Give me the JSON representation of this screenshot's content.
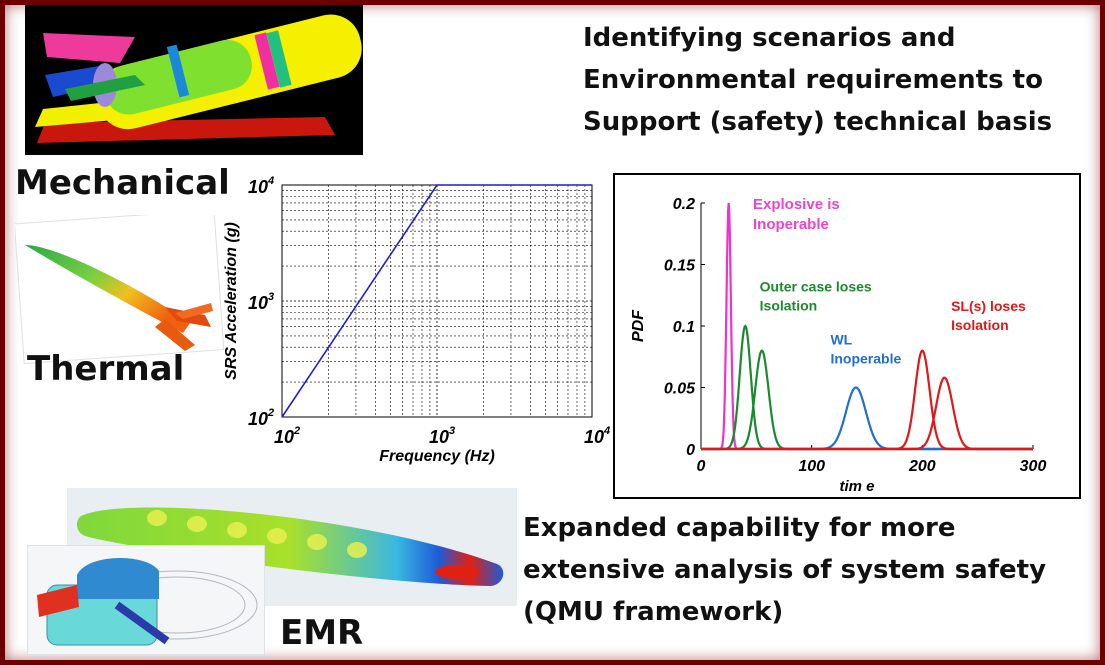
{
  "headings": {
    "top_lines": [
      "Identifying scenarios and",
      "Environmental requirements to",
      "Support (safety) technical basis"
    ],
    "bottom_lines": [
      "Expanded capability for more",
      "extensive analysis of  system safety",
      "(QMU framework)"
    ]
  },
  "labels": {
    "mechanical": "Mechanical",
    "thermal": "Thermal",
    "emr": "EMR"
  },
  "chart_data": [
    {
      "type": "line",
      "scale": "log-log",
      "xlabel": "Frequency (Hz)",
      "ylabel": "SRS Acceleration (g)",
      "xlim": [
        100,
        10000
      ],
      "ylim": [
        100,
        10000
      ],
      "grid": true,
      "xticks": [
        {
          "base": "10",
          "exp": "2",
          "value": 100
        },
        {
          "base": "10",
          "exp": "3",
          "value": 1000
        },
        {
          "base": "10",
          "exp": "4",
          "value": 10000
        }
      ],
      "yticks": [
        {
          "base": "10",
          "exp": "2",
          "value": 100
        },
        {
          "base": "10",
          "exp": "3",
          "value": 1000
        },
        {
          "base": "10",
          "exp": "4",
          "value": 10000
        }
      ],
      "series": [
        {
          "color": "#1f1fd0",
          "x": [
            100,
            1000,
            10000
          ],
          "y": [
            100,
            10000,
            10000
          ]
        }
      ]
    },
    {
      "type": "line",
      "xlabel": "tim e",
      "ylabel": "PDF",
      "xlim": [
        0,
        300
      ],
      "ylim": [
        0,
        0.2
      ],
      "xticks": [
        "0",
        "100",
        "200",
        "300"
      ],
      "yticks": [
        "0",
        "0.05",
        "0.1",
        "0.15",
        "0.2"
      ],
      "annotations": [
        {
          "lines": [
            "Explosive  is",
            "Inoperable"
          ],
          "color": "#ee44cc",
          "x": 47,
          "y": 0.195,
          "size": 15
        },
        {
          "lines": [
            "Outer case loses",
            "Isolation"
          ],
          "color": "#1b8a2e",
          "x": 53,
          "y": 0.128,
          "size": 14
        },
        {
          "lines": [
            "WL",
            "Inoperable"
          ],
          "color": "#1f6fd0",
          "x": 117,
          "y": 0.085,
          "size": 14
        },
        {
          "lines": [
            "SL(s) loses",
            "Isolation"
          ],
          "color": "#e01818",
          "x": 226,
          "y": 0.112,
          "size": 14
        }
      ],
      "series": [
        {
          "color": "#ee33cc",
          "mean": 25,
          "sd": 2,
          "peak": 0.2
        },
        {
          "color": "#1b8a2e",
          "mean": 40,
          "sd": 5,
          "peak": 0.1
        },
        {
          "color": "#1b8a2e",
          "mean": 55,
          "sd": 6,
          "peak": 0.08
        },
        {
          "color": "#1f6fd0",
          "mean": 140,
          "sd": 9,
          "peak": 0.05
        },
        {
          "color": "#e01818",
          "mean": 200,
          "sd": 6.5,
          "peak": 0.08
        },
        {
          "color": "#e01818",
          "mean": 220,
          "sd": 7.5,
          "peak": 0.058
        }
      ]
    }
  ]
}
